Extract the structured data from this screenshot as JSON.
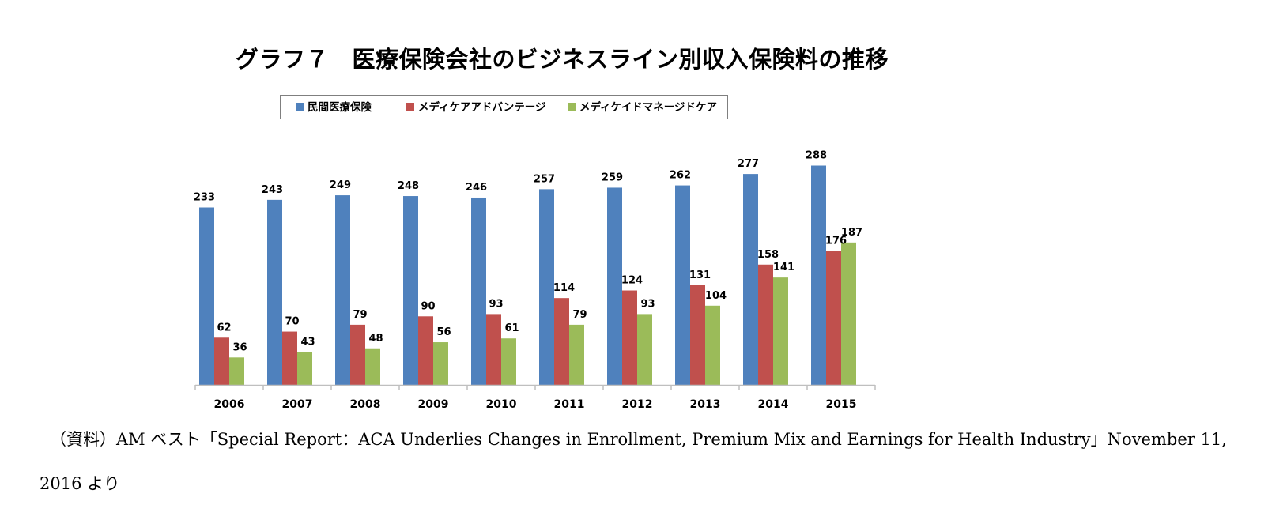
{
  "chart_data": {
    "type": "bar",
    "title": "グラフ７　医療保険会社のビジネスライン別収入保険料の推移",
    "categories": [
      "2006",
      "2007",
      "2008",
      "2009",
      "2010",
      "2011",
      "2012",
      "2013",
      "2014",
      "2015"
    ],
    "series": [
      {
        "name": "民間医療保険",
        "color": "#4F81BD",
        "values": [
          233,
          243,
          249,
          248,
          246,
          257,
          259,
          262,
          277,
          288
        ]
      },
      {
        "name": "メディケアアドバンテージ",
        "color": "#C0504D",
        "values": [
          62,
          70,
          79,
          90,
          93,
          114,
          124,
          131,
          158,
          176
        ]
      },
      {
        "name": "メディケイドマネージドケア",
        "color": "#9BBB59",
        "values": [
          36,
          43,
          48,
          56,
          61,
          79,
          93,
          104,
          141,
          187
        ]
      }
    ],
    "ylim": [
      0,
      300
    ],
    "legend": "top",
    "grid": false,
    "data_labels": true
  },
  "source": "（資料）AM ベスト「Special Report：ACA Underlies Changes in Enrollment, Premium Mix and Earnings for Health Industry」November 11, 2016 より"
}
